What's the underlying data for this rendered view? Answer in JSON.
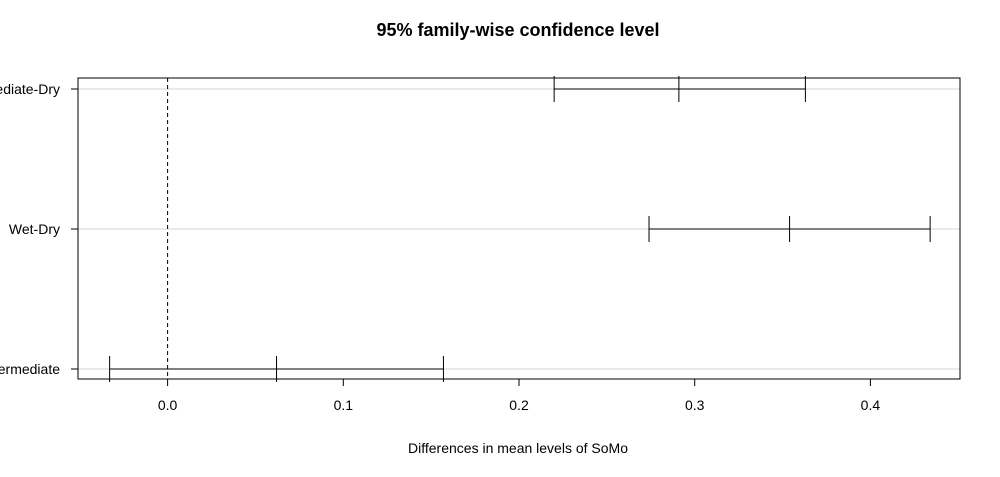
{
  "chart_data": {
    "type": "errorbar",
    "title": "95% family-wise confidence level",
    "xlabel": "Differences in mean levels of SoMo",
    "ylabel": "",
    "xlim": [
      -0.051,
      0.451
    ],
    "x_ticks": [
      0.0,
      0.1,
      0.2,
      0.3,
      0.4
    ],
    "x_tick_labels": [
      "0.0",
      "0.1",
      "0.2",
      "0.3",
      "0.4"
    ],
    "reference_line": 0.0,
    "grid": "horizontal",
    "comparisons": [
      {
        "label": "Intermediate-Dry",
        "lwr": 0.22,
        "diff": 0.291,
        "upr": 0.363
      },
      {
        "label": "Wet-Dry",
        "lwr": 0.274,
        "diff": 0.354,
        "upr": 0.434
      },
      {
        "label": "Wet-Intermediate",
        "lwr": -0.033,
        "diff": 0.062,
        "upr": 0.157
      }
    ]
  }
}
